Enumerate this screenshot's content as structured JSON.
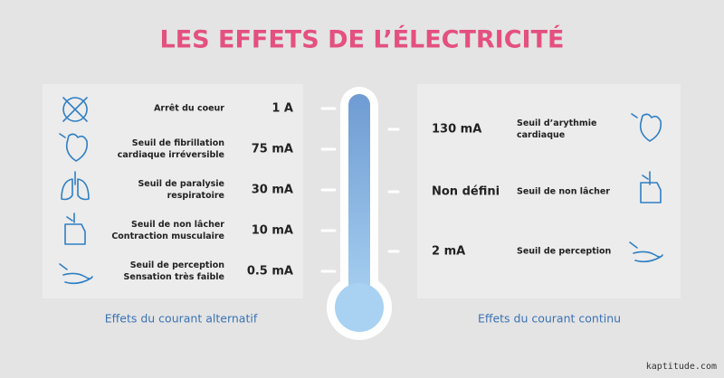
{
  "title": "LES EFFETS DE L’ÉLECTRICITÉ",
  "left": {
    "caption": "Effets du courant alternatif",
    "items": [
      {
        "label": [
          "Arrêt du coeur"
        ],
        "value": "1 A"
      },
      {
        "label": [
          "Seuil de fibrillation",
          "cardiaque irréversible"
        ],
        "value": "75 mA"
      },
      {
        "label": [
          "Seuil de paralysie",
          "respiratoire"
        ],
        "value": "30 mA"
      },
      {
        "label": [
          "Seuil de non lâcher",
          "Contraction musculaire"
        ],
        "value": "10 mA"
      },
      {
        "label": [
          "Seuil de perception",
          "Sensation très faible"
        ],
        "value": "0.5 mA"
      }
    ]
  },
  "right": {
    "caption": "Effets du courant continu",
    "items": [
      {
        "label": [
          "Seuil d’arythmie",
          "cardiaque"
        ],
        "value": "130 mA"
      },
      {
        "label": [
          "Seuil de non lâcher"
        ],
        "value": "Non défini"
      },
      {
        "label": [
          "Seuil de perception"
        ],
        "value": "2 mA"
      }
    ]
  },
  "watermark": "kaptitude.com"
}
